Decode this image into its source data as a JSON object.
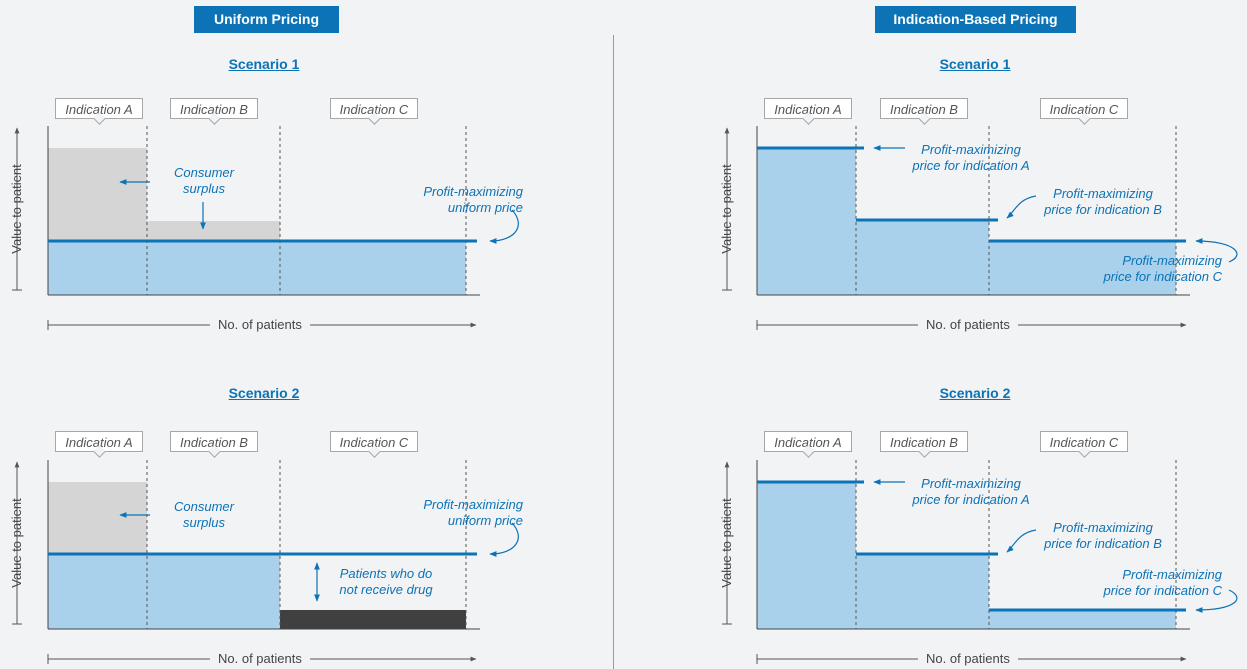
{
  "headers": {
    "left": "Uniform Pricing",
    "right": "Indication-Based Pricing"
  },
  "panels": [
    {
      "scenario": "Scenario 1",
      "indications": [
        "Indication A",
        "Indication B",
        "Indication C"
      ],
      "ylabel": "Value to patient",
      "xlabel": "No. of patients",
      "annotations": {
        "surplus": "Consumer\nsurplus",
        "price": "Profit-maximizing\nuniform price"
      }
    },
    {
      "scenario": "Scenario 2",
      "indications": [
        "Indication A",
        "Indication B",
        "Indication C"
      ],
      "ylabel": "Value to patient",
      "xlabel": "No. of patients",
      "annotations": {
        "surplus": "Consumer\nsurplus",
        "price": "Profit-maximizing\nuniform price",
        "excluded": "Patients who do\nnot receive drug"
      }
    },
    {
      "scenario": "Scenario 1",
      "indications": [
        "Indication A",
        "Indication B",
        "Indication C"
      ],
      "ylabel": "Value to patient",
      "xlabel": "No. of patients",
      "annotations": {
        "price_a": "Profit-maximizing\nprice for indication A",
        "price_b": "Profit-maximizing\nprice for indication B",
        "price_c": "Profit-maximizing\nprice for indication C"
      }
    },
    {
      "scenario": "Scenario 2",
      "indications": [
        "Indication A",
        "Indication B",
        "Indication C"
      ],
      "ylabel": "Value to patient",
      "xlabel": "No. of patients",
      "annotations": {
        "price_a": "Profit-maximizing\nprice for indication A",
        "price_b": "Profit-maximizing\nprice for indication B",
        "price_c": "Profit-maximizing\nprice for indication C"
      }
    }
  ],
  "colors": {
    "accent": "#0c73b6",
    "fill": "#a9d1ec",
    "surplus": "#d5d5d5",
    "excluded": "#404040"
  }
}
